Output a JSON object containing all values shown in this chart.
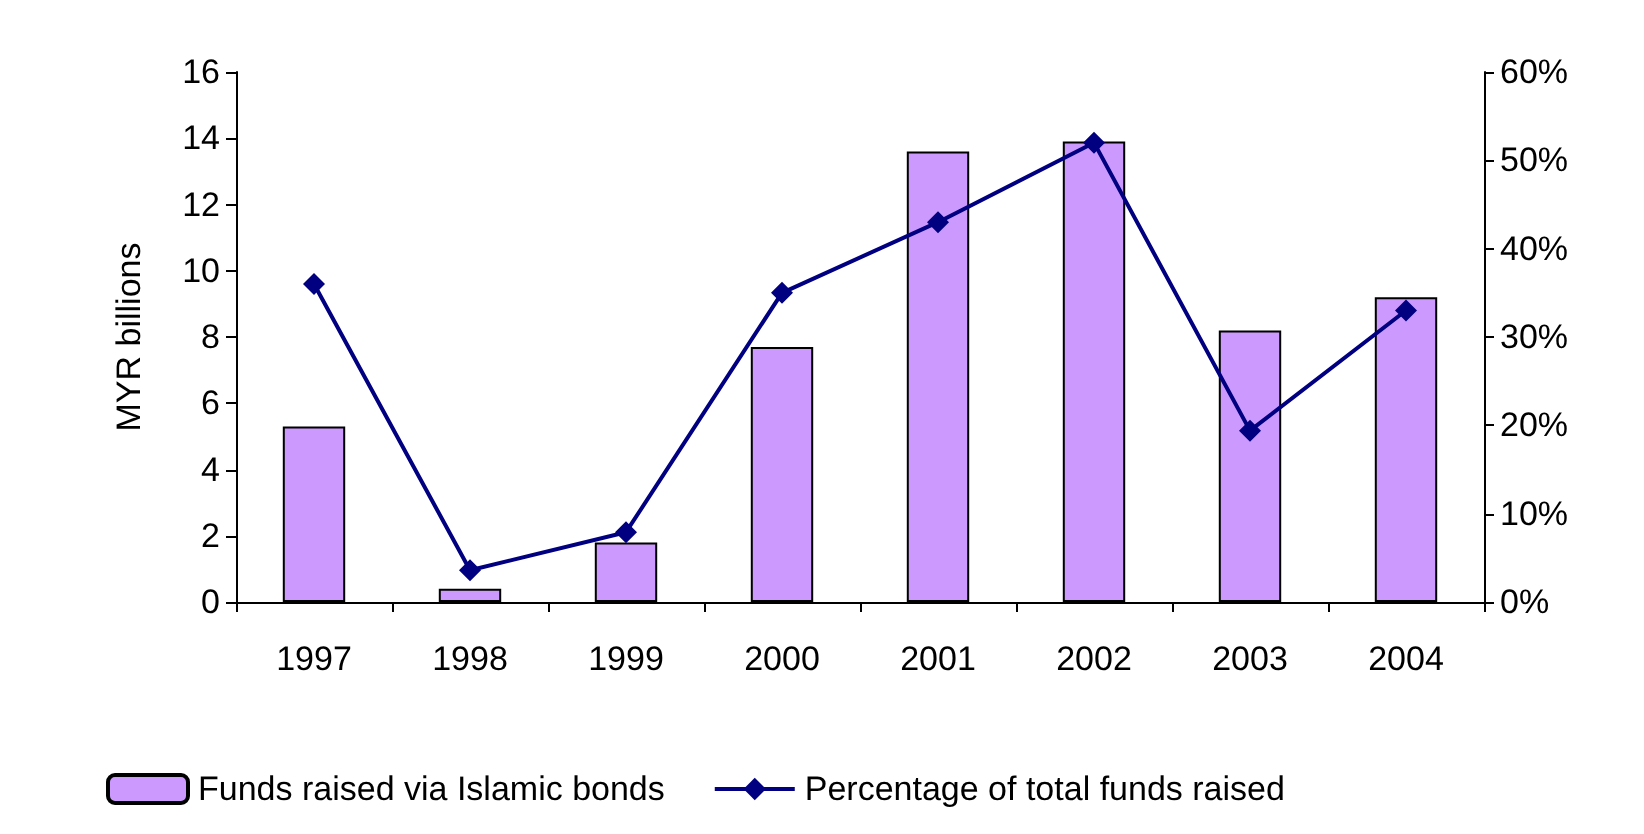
{
  "chart_data": {
    "type": "bar",
    "ylabel": "MYR billions",
    "categories": [
      "1997",
      "1998",
      "1999",
      "2000",
      "2001",
      "2002",
      "2003",
      "2004"
    ],
    "series": [
      {
        "name": "Funds raised via Islamic bonds",
        "color": "#cc99ff",
        "values": [
          5.3,
          0.4,
          1.8,
          7.7,
          13.6,
          13.9,
          8.2,
          9.2
        ]
      },
      {
        "name": "Percentage of total funds raised",
        "type": "line",
        "axis": "y2",
        "color": "#000080",
        "values": [
          36,
          3.6,
          7.9,
          35,
          43,
          52,
          19.4,
          33
        ]
      }
    ],
    "ylim": [
      0,
      16
    ],
    "yticks": [
      0,
      2,
      4,
      6,
      8,
      10,
      12,
      14,
      16
    ],
    "y2lim": [
      0,
      60
    ],
    "y2ticks": [
      {
        "value": 0,
        "label": "0%"
      },
      {
        "value": 10,
        "label": "10%"
      },
      {
        "value": 20,
        "label": "20%"
      },
      {
        "value": 30,
        "label": "30%"
      },
      {
        "value": 40,
        "label": "40%"
      },
      {
        "value": 50,
        "label": "50%"
      },
      {
        "value": 60,
        "label": "60%"
      }
    ],
    "legend": "bottom",
    "marker": "diamond",
    "grid": false
  }
}
